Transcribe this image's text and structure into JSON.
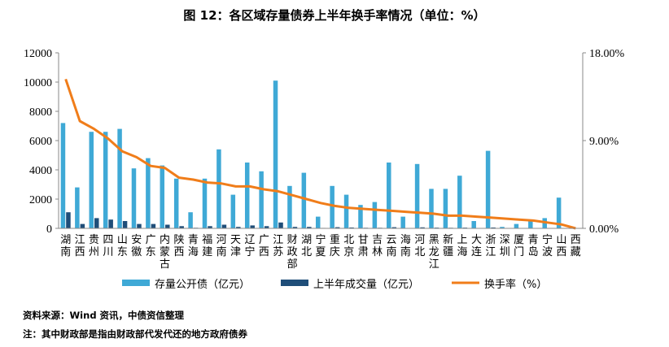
{
  "chart_data": {
    "type": "bar",
    "title": "图 12：各区域存量债券上半年换手率情况（单位：%）",
    "categories": [
      [
        "湖",
        "南"
      ],
      [
        "江",
        "西"
      ],
      [
        "贵",
        "州"
      ],
      [
        "四",
        "川"
      ],
      [
        "山",
        "东"
      ],
      [
        "安",
        "徽"
      ],
      [
        "广",
        "东"
      ],
      [
        "内",
        "蒙",
        "古"
      ],
      [
        "陕",
        "西"
      ],
      [
        "青",
        "海"
      ],
      [
        "福",
        "建"
      ],
      [
        "河",
        "南"
      ],
      [
        "天",
        "津"
      ],
      [
        "辽",
        "宁"
      ],
      [
        "广",
        "西"
      ],
      [
        "江",
        "苏"
      ],
      [
        "财",
        "政",
        "部"
      ],
      [
        "湖",
        "北"
      ],
      [
        "宁",
        "夏"
      ],
      [
        "重",
        "庆"
      ],
      [
        "北",
        "京"
      ],
      [
        "甘",
        "肃"
      ],
      [
        "吉",
        "林"
      ],
      [
        "云",
        "南"
      ],
      [
        "海",
        "南"
      ],
      [
        "河",
        "北"
      ],
      [
        "黑",
        "龙",
        "江"
      ],
      [
        "新",
        "疆"
      ],
      [
        "上",
        "海"
      ],
      [
        "大",
        "连"
      ],
      [
        "浙",
        "江"
      ],
      [
        "深",
        "圳"
      ],
      [
        "厦",
        "门"
      ],
      [
        "青",
        "岛"
      ],
      [
        "宁",
        "波"
      ],
      [
        "山",
        "西"
      ],
      [
        "西",
        "藏"
      ]
    ],
    "series": [
      {
        "name": "存量公开债（亿元）",
        "type": "bar",
        "axis": "left",
        "color": "#3fa9d6",
        "values": [
          7200,
          2800,
          6600,
          6600,
          6800,
          4100,
          4800,
          4300,
          3400,
          1100,
          3400,
          5400,
          2300,
          4500,
          3900,
          10100,
          2900,
          3800,
          800,
          2900,
          2300,
          1600,
          1800,
          4500,
          800,
          4400,
          2700,
          2700,
          3600,
          500,
          5300,
          100,
          300,
          500,
          700,
          2100,
          0
        ]
      },
      {
        "name": "上半年成交量（亿元）",
        "type": "bar",
        "axis": "left",
        "color": "#1f4e79",
        "values": [
          1100,
          300,
          700,
          600,
          500,
          300,
          300,
          250,
          150,
          40,
          150,
          250,
          100,
          200,
          150,
          400,
          100,
          100,
          30,
          80,
          60,
          40,
          40,
          80,
          20,
          70,
          50,
          40,
          50,
          10,
          60,
          2,
          5,
          5,
          5,
          15,
          0
        ]
      },
      {
        "name": "换手率（%）",
        "type": "line",
        "axis": "right",
        "color": "#f07d1a",
        "values": [
          15.3,
          11.0,
          10.2,
          9.2,
          7.9,
          7.3,
          6.4,
          6.2,
          5.2,
          5.0,
          4.7,
          4.6,
          4.3,
          4.3,
          4.0,
          3.8,
          3.4,
          3.0,
          2.6,
          2.3,
          2.1,
          2.0,
          1.9,
          1.8,
          1.7,
          1.6,
          1.5,
          1.3,
          1.3,
          1.2,
          1.1,
          1.0,
          0.9,
          0.8,
          0.6,
          0.4,
          0.0
        ]
      }
    ],
    "y_left": {
      "min": 0,
      "max": 12000,
      "ticks": [
        "0",
        "2000",
        "4000",
        "6000",
        "8000",
        "10000",
        "12000"
      ]
    },
    "y_right": {
      "min": 0,
      "max": 18,
      "ticks": [
        "0.00%",
        "9.00%",
        "18.00%"
      ]
    },
    "grid": false,
    "legend": "bottom"
  },
  "footer": {
    "source": "资料来源：Wind 资讯，中债资信整理",
    "note": "注：其中财政部是指由财政部代发代还的地方政府债券"
  }
}
